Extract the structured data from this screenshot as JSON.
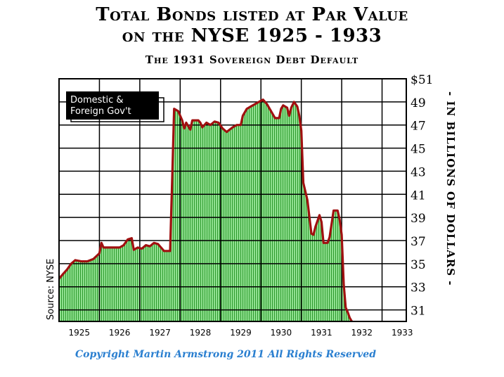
{
  "header": {
    "title_line1": "Total Bonds listed at Par Value",
    "title_line2": "on the NYSE 1925 - 1933",
    "subtitle": "The 1931 Sovereign Debt Default"
  },
  "copyright": "Copyright Martin Armstrong 2011 All Rights Reserved",
  "colors": {
    "line": "#a01010",
    "fill": "#8fe08f",
    "hatch": "#2e9a2e",
    "grid": "#000000",
    "legend_bg": "#000000",
    "legend_text": "#ffffff",
    "copyright": "#2a7fd0"
  },
  "chart_data": {
    "type": "area",
    "title": "Total Bonds listed at Par Value on the NYSE 1925 - 1933",
    "subtitle": "The 1931 Sovereign Debt Default",
    "legend": [
      "Domestic &",
      "Foreign Gov't"
    ],
    "legend_placement": "top-left",
    "ylabel": "- IN BILLIONS OF DOLLARS -",
    "source": "Source: NYSE",
    "xlim": [
      1925,
      1933.6
    ],
    "ylim": [
      30,
      51
    ],
    "grid": true,
    "x_ticks": [
      "1925",
      "1926",
      "1927",
      "1928",
      "1929",
      "1930",
      "1931",
      "1932",
      "1933"
    ],
    "y_ticks": [
      "$51",
      "49",
      "47",
      "45",
      "43",
      "41",
      "39",
      "37",
      "35",
      "33",
      "31"
    ],
    "y_tick_values": [
      51,
      49,
      47,
      45,
      43,
      41,
      39,
      37,
      35,
      33,
      31
    ],
    "series": [
      {
        "name": "Domestic & Foreign Gov't",
        "points": [
          [
            1925.0,
            33.7
          ],
          [
            1925.1,
            34.1
          ],
          [
            1925.2,
            34.5
          ],
          [
            1925.3,
            35.0
          ],
          [
            1925.4,
            35.3
          ],
          [
            1925.55,
            35.2
          ],
          [
            1925.7,
            35.2
          ],
          [
            1925.85,
            35.4
          ],
          [
            1926.0,
            35.9
          ],
          [
            1926.05,
            36.8
          ],
          [
            1926.1,
            36.4
          ],
          [
            1926.3,
            36.4
          ],
          [
            1926.5,
            36.4
          ],
          [
            1926.6,
            36.6
          ],
          [
            1926.7,
            37.1
          ],
          [
            1926.8,
            37.2
          ],
          [
            1926.85,
            36.2
          ],
          [
            1926.95,
            36.4
          ],
          [
            1927.05,
            36.3
          ],
          [
            1927.15,
            36.6
          ],
          [
            1927.25,
            36.5
          ],
          [
            1927.35,
            36.8
          ],
          [
            1927.45,
            36.7
          ],
          [
            1927.55,
            36.3
          ],
          [
            1927.6,
            36.1
          ],
          [
            1927.75,
            36.1
          ],
          [
            1927.8,
            42.0
          ],
          [
            1927.85,
            48.4
          ],
          [
            1927.95,
            48.2
          ],
          [
            1928.05,
            47.4
          ],
          [
            1928.1,
            46.7
          ],
          [
            1928.15,
            47.2
          ],
          [
            1928.25,
            46.6
          ],
          [
            1928.3,
            47.4
          ],
          [
            1928.45,
            47.4
          ],
          [
            1928.5,
            47.2
          ],
          [
            1928.55,
            46.8
          ],
          [
            1928.65,
            47.2
          ],
          [
            1928.75,
            47.0
          ],
          [
            1928.85,
            47.3
          ],
          [
            1928.95,
            47.2
          ],
          [
            1929.05,
            46.7
          ],
          [
            1929.15,
            46.4
          ],
          [
            1929.3,
            46.8
          ],
          [
            1929.4,
            47.0
          ],
          [
            1929.5,
            47.0
          ],
          [
            1929.55,
            47.8
          ],
          [
            1929.65,
            48.4
          ],
          [
            1929.75,
            48.6
          ],
          [
            1929.85,
            48.8
          ],
          [
            1929.95,
            49.0
          ],
          [
            1930.05,
            49.2
          ],
          [
            1930.15,
            48.8
          ],
          [
            1930.25,
            48.2
          ],
          [
            1930.35,
            47.6
          ],
          [
            1930.45,
            47.6
          ],
          [
            1930.5,
            48.4
          ],
          [
            1930.55,
            48.7
          ],
          [
            1930.65,
            48.5
          ],
          [
            1930.7,
            47.8
          ],
          [
            1930.75,
            48.5
          ],
          [
            1930.82,
            49.0
          ],
          [
            1930.9,
            48.6
          ],
          [
            1930.95,
            47.8
          ],
          [
            1931.0,
            46.5
          ],
          [
            1931.05,
            42.0
          ],
          [
            1931.15,
            40.5
          ],
          [
            1931.25,
            37.6
          ],
          [
            1931.3,
            37.5
          ],
          [
            1931.35,
            38.2
          ],
          [
            1931.45,
            39.2
          ],
          [
            1931.5,
            38.6
          ],
          [
            1931.55,
            36.8
          ],
          [
            1931.65,
            36.8
          ],
          [
            1931.7,
            37.3
          ],
          [
            1931.8,
            39.6
          ],
          [
            1931.9,
            39.6
          ],
          [
            1931.95,
            38.8
          ],
          [
            1932.0,
            37.5
          ],
          [
            1932.05,
            33.2
          ],
          [
            1932.1,
            31.2
          ],
          [
            1932.15,
            30.8
          ],
          [
            1932.2,
            30.3
          ],
          [
            1932.25,
            30.0
          ]
        ]
      }
    ]
  }
}
